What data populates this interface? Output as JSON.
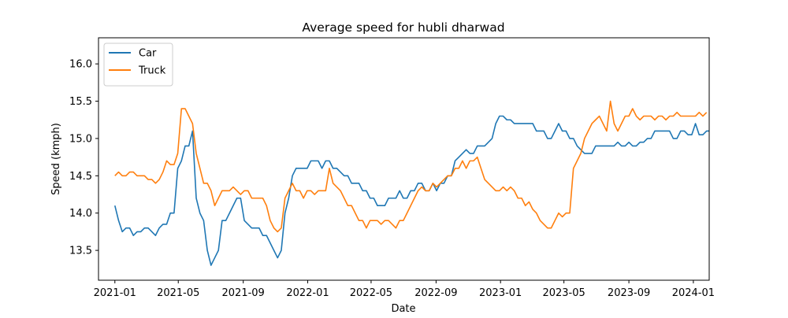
{
  "chart_data": {
    "type": "line",
    "title": "Average speed for hubli dharwad",
    "xlabel": "Date",
    "ylabel": "Speed (kmph)",
    "x_ticks": [
      "2021-01",
      "2021-05",
      "2021-09",
      "2022-01",
      "2022-05",
      "2022-09",
      "2023-01",
      "2023-05",
      "2023-09",
      "2024-01"
    ],
    "y_ticks": [
      "13.5",
      "14.0",
      "14.5",
      "15.0",
      "15.5",
      "16.0"
    ],
    "xlim": [
      "2020-12-01",
      "2024-01-31"
    ],
    "ylim": [
      13.1,
      16.35
    ],
    "grid": false,
    "legend_position": "top-left",
    "x_resolution": "weekly",
    "series": [
      {
        "name": "Car",
        "color": "#1f77b4",
        "start": "2021-01-01",
        "values": [
          14.1,
          13.9,
          13.75,
          13.8,
          13.8,
          13.7,
          13.75,
          13.75,
          13.8,
          13.8,
          13.75,
          13.7,
          13.8,
          13.85,
          13.85,
          14.0,
          14.0,
          14.6,
          14.7,
          14.9,
          14.9,
          15.1,
          14.2,
          14.0,
          13.9,
          13.5,
          13.3,
          13.4,
          13.5,
          13.9,
          13.9,
          14.0,
          14.1,
          14.2,
          14.2,
          13.9,
          13.85,
          13.8,
          13.8,
          13.8,
          13.7,
          13.7,
          13.6,
          13.5,
          13.4,
          13.5,
          14.0,
          14.2,
          14.5,
          14.6,
          14.6,
          14.6,
          14.6,
          14.7,
          14.7,
          14.7,
          14.6,
          14.7,
          14.7,
          14.6,
          14.6,
          14.55,
          14.5,
          14.5,
          14.4,
          14.4,
          14.4,
          14.3,
          14.3,
          14.2,
          14.2,
          14.1,
          14.1,
          14.1,
          14.2,
          14.2,
          14.2,
          14.3,
          14.2,
          14.2,
          14.3,
          14.3,
          14.4,
          14.4,
          14.3,
          14.3,
          14.4,
          14.3,
          14.4,
          14.4,
          14.5,
          14.5,
          14.7,
          14.75,
          14.8,
          14.85,
          14.8,
          14.8,
          14.9,
          14.9,
          14.9,
          14.95,
          15.0,
          15.2,
          15.3,
          15.3,
          15.25,
          15.25,
          15.2,
          15.2,
          15.2,
          15.2,
          15.2,
          15.2,
          15.1,
          15.1,
          15.1,
          15.0,
          15.0,
          15.1,
          15.2,
          15.1,
          15.1,
          15.0,
          15.0,
          14.9,
          14.85,
          14.8,
          14.8,
          14.8,
          14.9,
          14.9,
          14.9,
          14.9,
          14.9,
          14.9,
          14.95,
          14.9,
          14.9,
          14.95,
          14.9,
          14.9,
          14.95,
          14.95,
          15.0,
          15.0,
          15.1,
          15.1,
          15.1,
          15.1,
          15.1,
          15.0,
          15.0,
          15.1,
          15.1,
          15.05,
          15.05,
          15.2,
          15.05,
          15.05,
          15.1,
          15.1,
          15.05
        ]
      },
      {
        "name": "Truck",
        "color": "#ff7f0e",
        "start": "2021-01-01",
        "values": [
          14.5,
          14.55,
          14.5,
          14.5,
          14.55,
          14.55,
          14.5,
          14.5,
          14.5,
          14.45,
          14.45,
          14.4,
          14.45,
          14.55,
          14.7,
          14.65,
          14.65,
          14.8,
          15.4,
          15.4,
          15.3,
          15.2,
          14.8,
          14.6,
          14.4,
          14.4,
          14.3,
          14.1,
          14.2,
          14.3,
          14.3,
          14.3,
          14.35,
          14.3,
          14.25,
          14.3,
          14.3,
          14.2,
          14.2,
          14.2,
          14.2,
          14.1,
          13.9,
          13.8,
          13.75,
          13.8,
          14.2,
          14.3,
          14.4,
          14.3,
          14.3,
          14.2,
          14.3,
          14.3,
          14.25,
          14.3,
          14.3,
          14.3,
          14.6,
          14.4,
          14.35,
          14.3,
          14.2,
          14.1,
          14.1,
          14.0,
          13.9,
          13.9,
          13.8,
          13.9,
          13.9,
          13.9,
          13.85,
          13.9,
          13.9,
          13.85,
          13.8,
          13.9,
          13.9,
          14.0,
          14.1,
          14.2,
          14.3,
          14.35,
          14.3,
          14.3,
          14.4,
          14.35,
          14.4,
          14.45,
          14.5,
          14.5,
          14.6,
          14.6,
          14.7,
          14.6,
          14.7,
          14.7,
          14.75,
          14.6,
          14.45,
          14.4,
          14.35,
          14.3,
          14.3,
          14.35,
          14.3,
          14.35,
          14.3,
          14.2,
          14.2,
          14.1,
          14.15,
          14.05,
          14.0,
          13.9,
          13.85,
          13.8,
          13.8,
          13.9,
          14.0,
          13.95,
          14.0,
          14.0,
          14.6,
          14.7,
          14.8,
          15.0,
          15.1,
          15.2,
          15.25,
          15.3,
          15.2,
          15.1,
          15.5,
          15.2,
          15.1,
          15.2,
          15.3,
          15.3,
          15.4,
          15.3,
          15.25,
          15.3,
          15.3,
          15.3,
          15.25,
          15.3,
          15.3,
          15.25,
          15.3,
          15.3,
          15.35,
          15.3,
          15.3,
          15.3,
          15.3,
          15.3,
          15.35,
          15.3,
          15.35
        ]
      }
    ]
  }
}
